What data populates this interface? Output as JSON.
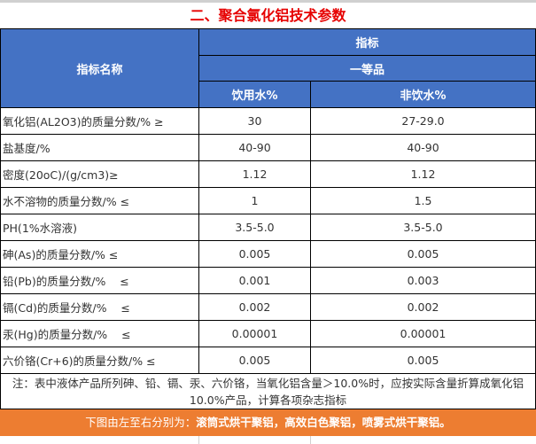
{
  "title": "二、聚合氯化铝技术参数",
  "header": {
    "name_col": "指标名称",
    "group": "指标",
    "grade": "一等品",
    "col1": "饮用水%",
    "col2": "非饮水%"
  },
  "rows": [
    {
      "name": "氧化铝(AL2O3)的质量分数/% ≥",
      "v1": "30",
      "v2": "27-29.0"
    },
    {
      "name": "盐基度/%",
      "v1": "40-90",
      "v2": "40-90"
    },
    {
      "name": "密度(20oC)/(g/cm3)≥",
      "v1": "1.12",
      "v2": "1.12"
    },
    {
      "name": "水不溶物的质量分数/% ≤",
      "v1": "1",
      "v2": "1.5"
    },
    {
      "name": "PH(1%水溶液)",
      "v1": "3.5-5.0",
      "v2": "3.5-5.0"
    },
    {
      "name": "砷(As)的质量分数/% ≤",
      "v1": "0.005",
      "v2": "0.005"
    },
    {
      "name": "铅(Pb)的质量分数/%    ≤",
      "v1": "0.001",
      "v2": "0.003"
    },
    {
      "name": "镉(Cd)的质量分数/%    ≤",
      "v1": "0.002",
      "v2": "0.002"
    },
    {
      "name": "汞(Hg)的质量分数/%    ≤",
      "v1": "0.00001",
      "v2": "0.00001"
    },
    {
      "name": "六价铬(Cr+6)的质量分数/% ≤",
      "v1": "0.005",
      "v2": "0.005"
    }
  ],
  "note": "注：表中液体产品所列砷、铅、镉、汞、六价铬，当氧化铝含量＞10.0%时，应按实际含量折算成氧化铝10.0%产品，计算各项杂志指标",
  "banner": {
    "prefix": "下图由左至右分别为：",
    "products": "滚筒式烘干聚铝，高效白色聚铝，喷雾式烘干聚铝。"
  }
}
